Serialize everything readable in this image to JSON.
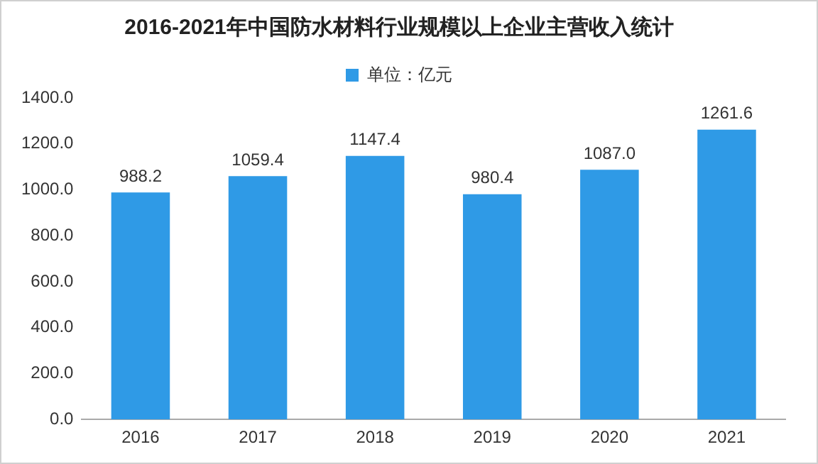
{
  "chart_data": {
    "type": "bar",
    "title": "2016-2021年中国防水材料行业规模以上企业主营收入统计",
    "categories": [
      "2016",
      "2017",
      "2018",
      "2019",
      "2020",
      "2021"
    ],
    "series": [
      {
        "name": "单位：亿元",
        "color": "#2f9ae6",
        "values": [
          988.2,
          1059.4,
          1147.4,
          980.4,
          1087.0,
          1261.6
        ],
        "value_labels": [
          "988.2",
          "1059.4",
          "1147.4",
          "980.4",
          "1087.0",
          "1261.6"
        ]
      }
    ],
    "ylim": [
      0,
      1400
    ],
    "yticks": [
      {
        "value": 0,
        "label": "0.0"
      },
      {
        "value": 200,
        "label": "200.0"
      },
      {
        "value": 400,
        "label": "400.0"
      },
      {
        "value": 600,
        "label": "600.0"
      },
      {
        "value": 800,
        "label": "800.0"
      },
      {
        "value": 1000,
        "label": "1000.0"
      },
      {
        "value": 1200,
        "label": "1200.0"
      },
      {
        "value": 1400,
        "label": "1400.0"
      }
    ],
    "grid": false,
    "legend": "top"
  }
}
